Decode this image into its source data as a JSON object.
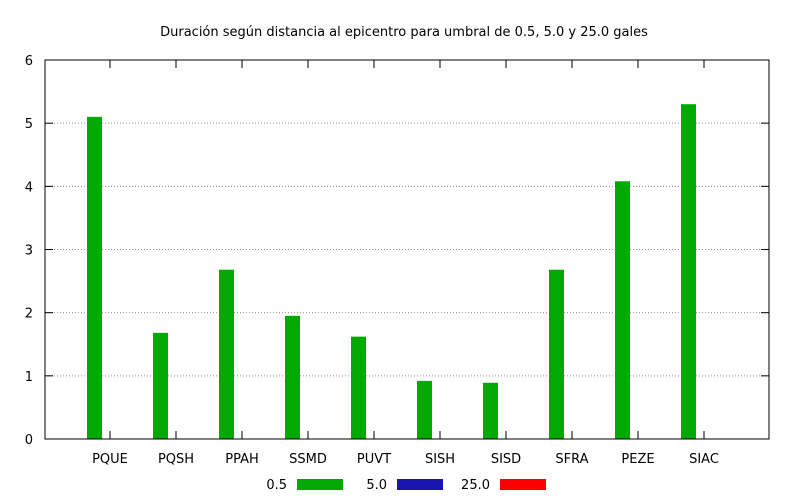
{
  "chart_data": {
    "type": "bar",
    "title": "Duración según distancia al epicentro para umbral de 0.5, 5.0 y 25.0 gales",
    "xlabel": "",
    "ylabel": "",
    "ylim": [
      0,
      6
    ],
    "yticks": [
      "0",
      "1",
      "2",
      "3",
      "4",
      "5",
      "6"
    ],
    "grid": true,
    "legend_position": "bottom",
    "categories": [
      "PQUE",
      "PQSH",
      "PPAH",
      "SSMD",
      "PUVT",
      "SISH",
      "SISD",
      "SFRA",
      "PEZE",
      "SIAC"
    ],
    "series": [
      {
        "name": "0.5",
        "color": "#00a800",
        "values": [
          5.1,
          1.68,
          2.68,
          1.95,
          1.62,
          0.92,
          0.89,
          2.68,
          4.08,
          5.3
        ]
      },
      {
        "name": "5.0",
        "color": "#1a14b0",
        "values": [
          0,
          0,
          0,
          0,
          0,
          0,
          0,
          0,
          0,
          0
        ]
      },
      {
        "name": "25.0",
        "color": "#ff0000",
        "values": [
          0,
          0,
          0,
          0,
          0,
          0,
          0,
          0,
          0,
          0
        ]
      }
    ]
  }
}
